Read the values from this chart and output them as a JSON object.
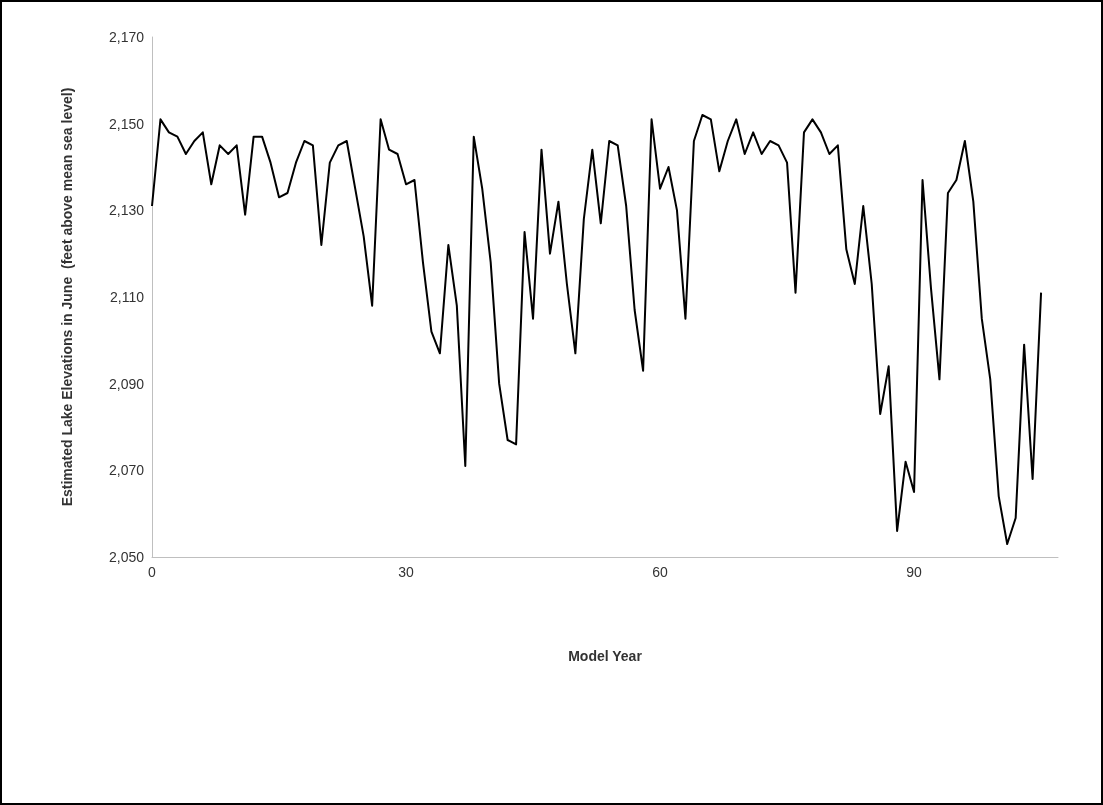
{
  "chart_data": {
    "type": "line",
    "xlabel": "Model Year",
    "ylabel": "Estimated Lake Elevations in June  (feet above mean sea level)",
    "x": [
      0,
      1,
      2,
      3,
      4,
      5,
      6,
      7,
      8,
      9,
      10,
      11,
      12,
      13,
      14,
      15,
      16,
      17,
      18,
      19,
      20,
      21,
      22,
      23,
      24,
      25,
      26,
      27,
      28,
      29,
      30,
      31,
      32,
      33,
      34,
      35,
      36,
      37,
      38,
      39,
      40,
      41,
      42,
      43,
      44,
      45,
      46,
      47,
      48,
      49,
      50,
      51,
      52,
      53,
      54,
      55,
      56,
      57,
      58,
      59,
      60,
      61,
      62,
      63,
      64,
      65,
      66,
      67,
      68,
      69,
      70,
      71,
      72,
      73,
      74,
      75,
      76,
      77,
      78,
      79,
      80,
      81,
      82,
      83,
      84,
      85,
      86,
      87,
      88,
      89,
      90,
      91,
      92,
      93,
      94,
      95,
      96,
      97,
      98,
      99,
      100,
      101,
      102,
      103,
      104,
      105
    ],
    "series": [
      {
        "color": "#000000",
        "values": [
          2131,
          2151,
          2148,
          2147,
          2143,
          2146,
          2148,
          2136,
          2145,
          2143,
          2145,
          2129,
          2147,
          2147,
          2141,
          2133,
          2134,
          2141,
          2146,
          2145,
          2122,
          2141,
          2145,
          2146,
          2135,
          2124,
          2108,
          2151,
          2144,
          2143,
          2136,
          2137,
          2118,
          2102,
          2097,
          2122,
          2108,
          2071,
          2147,
          2135,
          2118,
          2090,
          2077,
          2076,
          2125,
          2105,
          2144,
          2120,
          2132,
          2113,
          2097,
          2128,
          2144,
          2127,
          2146,
          2145,
          2131,
          2107,
          2093,
          2151,
          2135,
          2140,
          2130,
          2105,
          2146,
          2152,
          2151,
          2139,
          2146,
          2151,
          2143,
          2148,
          2143,
          2146,
          2145,
          2141,
          2111,
          2148,
          2151,
          2148,
          2143,
          2145,
          2121,
          2113,
          2131,
          2113,
          2083,
          2094,
          2056,
          2072,
          2065,
          2137,
          2112,
          2091,
          2134,
          2137,
          2146,
          2132,
          2105,
          2091,
          2064,
          2053,
          2059,
          2099,
          2068,
          2111
        ]
      }
    ],
    "xlim": [
      0,
      107
    ],
    "xticks": [
      0,
      30,
      60,
      90
    ],
    "ylim": [
      2050,
      2170
    ],
    "yticks": [
      {
        "value": 2050,
        "label": "2,050"
      },
      {
        "value": 2070,
        "label": "2,070"
      },
      {
        "value": 2090,
        "label": "2,090"
      },
      {
        "value": 2110,
        "label": "2,110"
      },
      {
        "value": 2130,
        "label": "2,130"
      },
      {
        "value": 2150,
        "label": "2,150"
      },
      {
        "value": 2170,
        "label": "2,170"
      }
    ],
    "grid": false,
    "marker": "none",
    "line_style": "solid"
  }
}
